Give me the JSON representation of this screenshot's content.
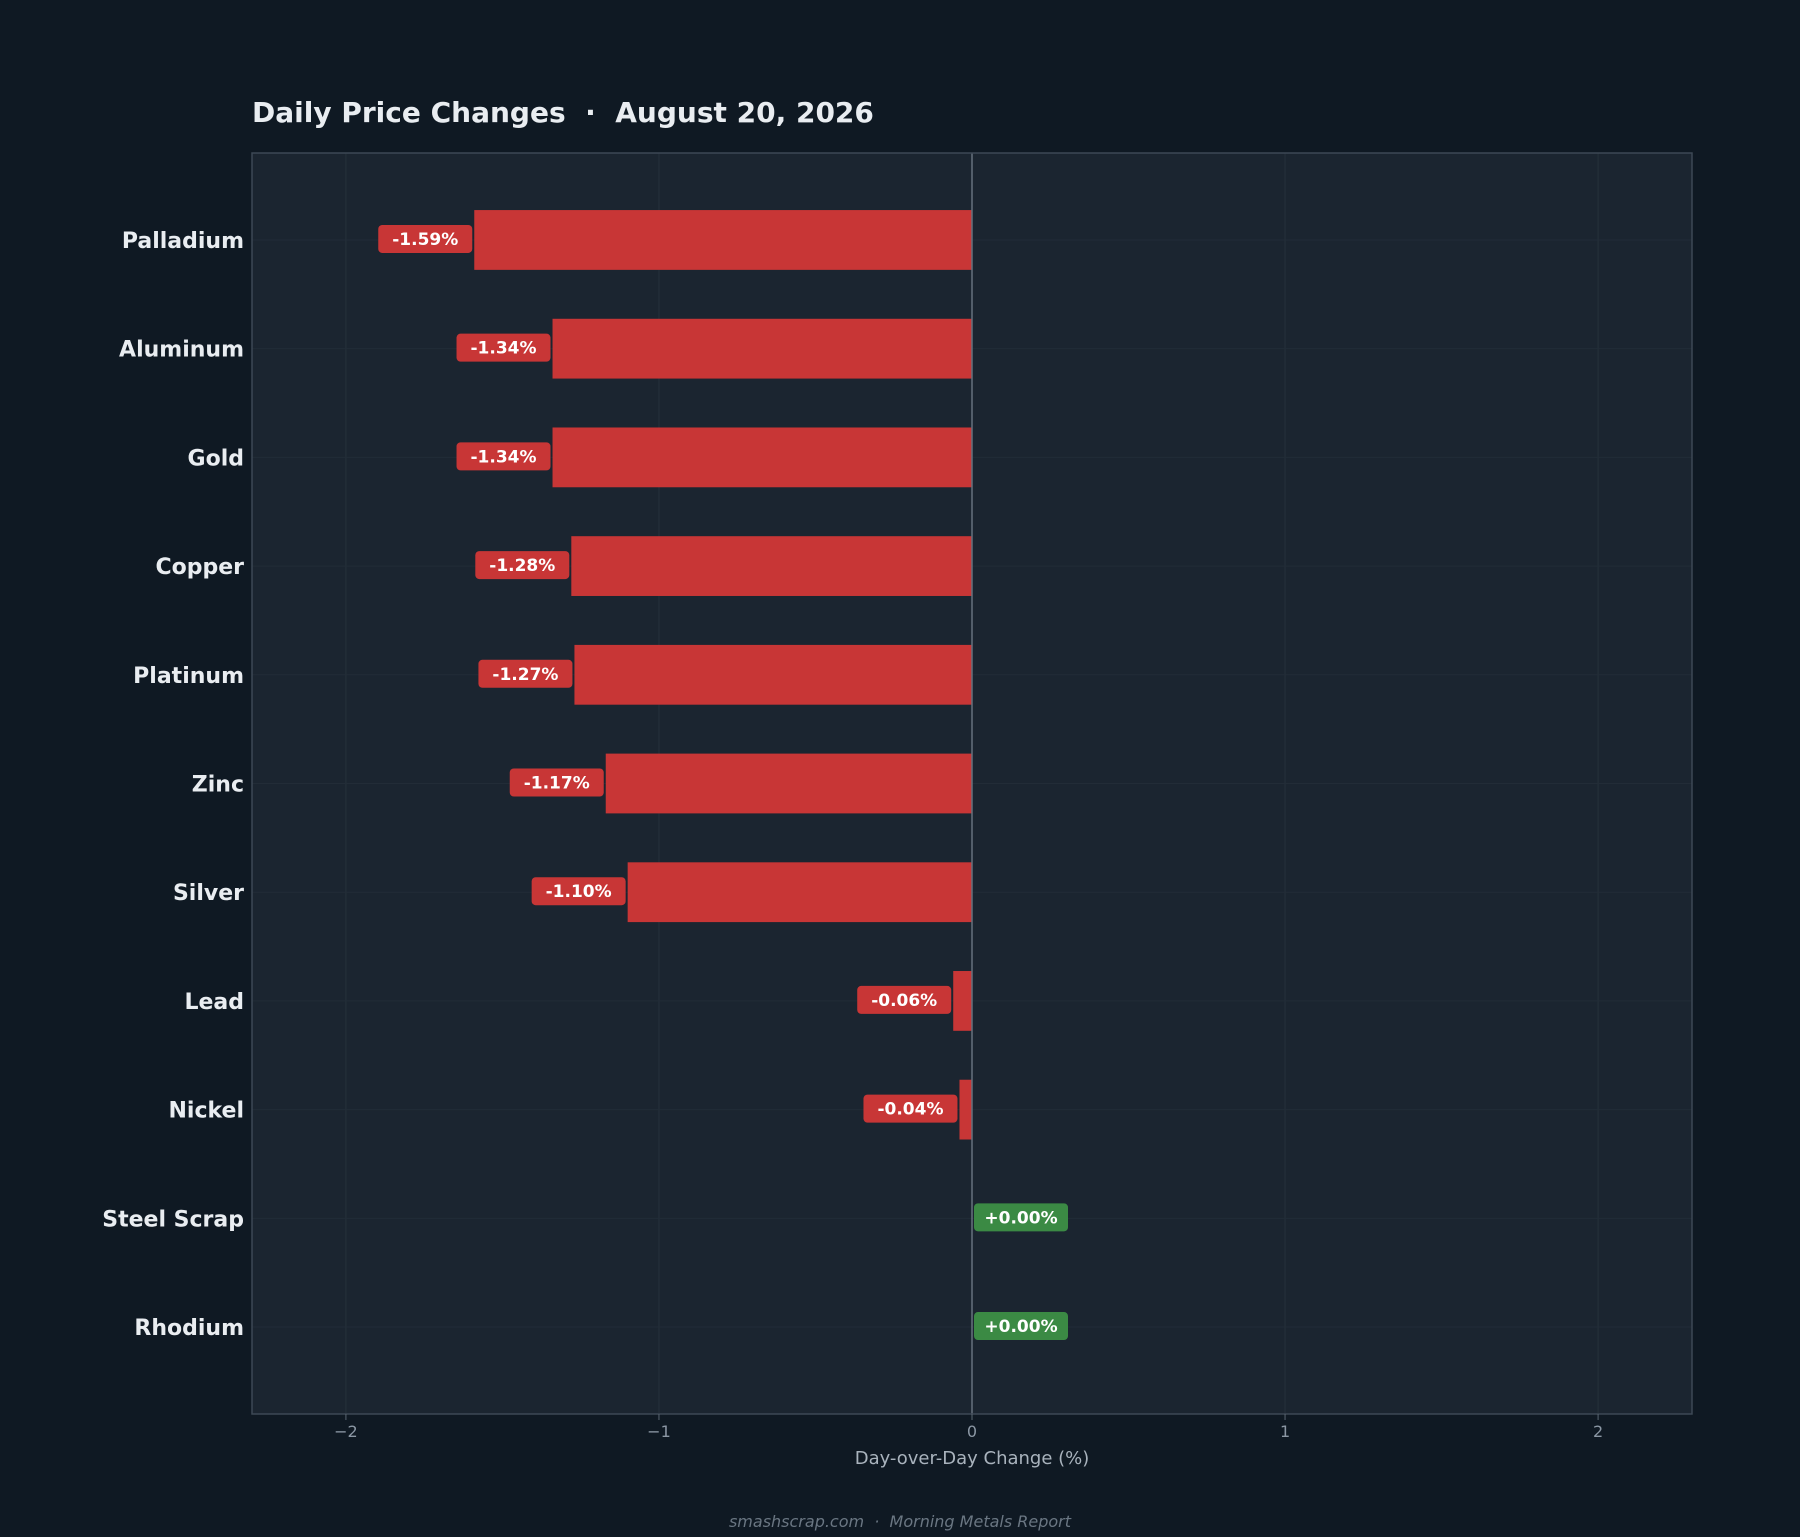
{
  "colors": {
    "background": "#0f1923",
    "plot_background": "#1b2530",
    "negative": "#c83636",
    "positive": "#3b8a44",
    "text": "#e9edf1",
    "tick": "#8b97a4",
    "spine": "#3d4855",
    "zero_line": "#66717d"
  },
  "footer": "smashscrap.com  ·  Morning Metals Report",
  "chart_data": {
    "type": "bar",
    "orientation": "horizontal",
    "title": "Daily Price Changes  ·  August 20, 2026",
    "xlabel": "Day-over-Day Change (%)",
    "ylabel": "",
    "xlim": [
      -2.3,
      2.3
    ],
    "xticks": [
      -2,
      -1,
      0,
      1,
      2
    ],
    "xtick_labels": [
      "−2",
      "−1",
      "0",
      "1",
      "2"
    ],
    "grid": true,
    "categories": [
      "Palladium",
      "Aluminum",
      "Gold",
      "Copper",
      "Platinum",
      "Zinc",
      "Silver",
      "Lead",
      "Nickel",
      "Steel Scrap",
      "Rhodium"
    ],
    "values": [
      -1.59,
      -1.34,
      -1.34,
      -1.28,
      -1.27,
      -1.17,
      -1.1,
      -0.06,
      -0.04,
      0.0,
      0.0
    ],
    "data_labels": [
      "-1.59%",
      "-1.34%",
      "-1.34%",
      "-1.28%",
      "-1.27%",
      "-1.17%",
      "-1.10%",
      "-0.06%",
      "-0.04%",
      "+0.00%",
      "+0.00%"
    ]
  }
}
